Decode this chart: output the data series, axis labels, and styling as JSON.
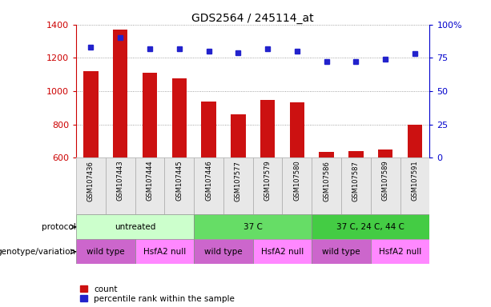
{
  "title": "GDS2564 / 245114_at",
  "samples": [
    "GSM107436",
    "GSM107443",
    "GSM107444",
    "GSM107445",
    "GSM107446",
    "GSM107577",
    "GSM107579",
    "GSM107580",
    "GSM107586",
    "GSM107587",
    "GSM107589",
    "GSM107591"
  ],
  "counts": [
    1120,
    1370,
    1110,
    1075,
    935,
    862,
    945,
    930,
    635,
    637,
    650,
    798
  ],
  "percentiles": [
    83,
    90,
    82,
    82,
    80,
    79,
    82,
    80,
    72,
    72,
    74,
    78
  ],
  "ylim_left": [
    600,
    1400
  ],
  "ylim_right": [
    0,
    100
  ],
  "yticks_left": [
    600,
    800,
    1000,
    1200,
    1400
  ],
  "yticks_right": [
    0,
    25,
    50,
    75,
    100
  ],
  "protocol_groups": [
    {
      "label": "untreated",
      "start": 0,
      "end": 4,
      "color": "#ccffcc"
    },
    {
      "label": "37 C",
      "start": 4,
      "end": 8,
      "color": "#66dd66"
    },
    {
      "label": "37 C, 24 C, 44 C",
      "start": 8,
      "end": 12,
      "color": "#44cc44"
    }
  ],
  "genotype_groups": [
    {
      "label": "wild type",
      "start": 0,
      "end": 2,
      "color": "#cc66cc"
    },
    {
      "label": "HsfA2 null",
      "start": 2,
      "end": 4,
      "color": "#ff88ff"
    },
    {
      "label": "wild type",
      "start": 4,
      "end": 6,
      "color": "#cc66cc"
    },
    {
      "label": "HsfA2 null",
      "start": 6,
      "end": 8,
      "color": "#ff88ff"
    },
    {
      "label": "wild type",
      "start": 8,
      "end": 10,
      "color": "#cc66cc"
    },
    {
      "label": "HsfA2 null",
      "start": 10,
      "end": 12,
      "color": "#ff88ff"
    }
  ],
  "bar_color": "#cc1111",
  "dot_color": "#2222cc",
  "bar_width": 0.5,
  "left_label_color": "#cc0000",
  "right_label_color": "#0000cc",
  "grid_color": "#888888",
  "row_label_protocol": "protocol",
  "row_label_genotype": "genotype/variation",
  "legend_count": "count",
  "legend_percentile": "percentile rank within the sample",
  "xlim": [
    -0.5,
    11.5
  ]
}
